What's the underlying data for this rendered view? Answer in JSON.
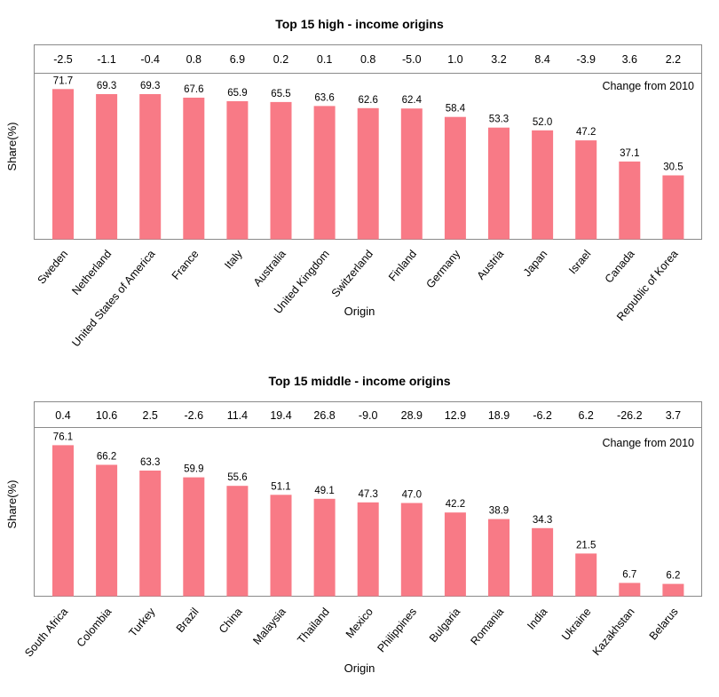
{
  "chart_data": [
    {
      "type": "bar",
      "title": "Top 15 high - income origins",
      "xlabel": "Origin",
      "ylabel": "Share(%)",
      "ylim": [
        0,
        80
      ],
      "change_label": "Change from 2010",
      "bar_color": "#f87a86",
      "categories": [
        "Sweden",
        "Netherland",
        "United States of America",
        "France",
        "Italy",
        "Australia",
        "United Kingdom",
        "Switzerland",
        "Finland",
        "Germany",
        "Austria",
        "Japan",
        "Israel",
        "Canada",
        "Republic of Korea"
      ],
      "values": [
        71.7,
        69.3,
        69.3,
        67.6,
        65.9,
        65.5,
        63.6,
        62.6,
        62.4,
        58.4,
        53.3,
        52.0,
        47.2,
        37.1,
        30.5
      ],
      "value_labels": [
        "71.7",
        "69.3",
        "69.3",
        "67.6",
        "65.9",
        "65.5",
        "63.6",
        "62.6",
        "62.4",
        "58.4",
        "53.3",
        "52.0",
        "47.2",
        "37.1",
        "30.5"
      ],
      "change": [
        "-2.5",
        "-1.1",
        "-0.4",
        "0.8",
        "6.9",
        "0.2",
        "0.1",
        "0.8",
        "-5.0",
        "1.0",
        "3.2",
        "8.4",
        "-3.9",
        "3.6",
        "2.2"
      ]
    },
    {
      "type": "bar",
      "title": "Top 15 middle - income origins",
      "xlabel": "Origin",
      "ylabel": "Share(%)",
      "ylim": [
        0,
        80
      ],
      "change_label": "Change from 2010",
      "bar_color": "#f87a86",
      "categories": [
        "South Africa",
        "Colombia",
        "Turkey",
        "Brazil",
        "China",
        "Malaysia",
        "Thailand",
        "Mexico",
        "Philippines",
        "Bulgaria",
        "Romania",
        "India",
        "Ukraine",
        "Kazakhstan",
        "Belarus"
      ],
      "values": [
        76.1,
        66.2,
        63.3,
        59.9,
        55.6,
        51.1,
        49.1,
        47.3,
        47.0,
        42.2,
        38.9,
        34.3,
        21.5,
        6.7,
        6.2
      ],
      "value_labels": [
        "76.1",
        "66.2",
        "63.3",
        "59.9",
        "55.6",
        "51.1",
        "49.1",
        "47.3",
        "47.0",
        "42.2",
        "38.9",
        "34.3",
        "21.5",
        "6.7",
        "6.2"
      ],
      "change": [
        "0.4",
        "10.6",
        "2.5",
        "-2.6",
        "11.4",
        "19.4",
        "26.8",
        "-9.0",
        "28.9",
        "12.9",
        "18.9",
        "-6.2",
        "6.2",
        "-26.2",
        "3.7"
      ]
    }
  ]
}
